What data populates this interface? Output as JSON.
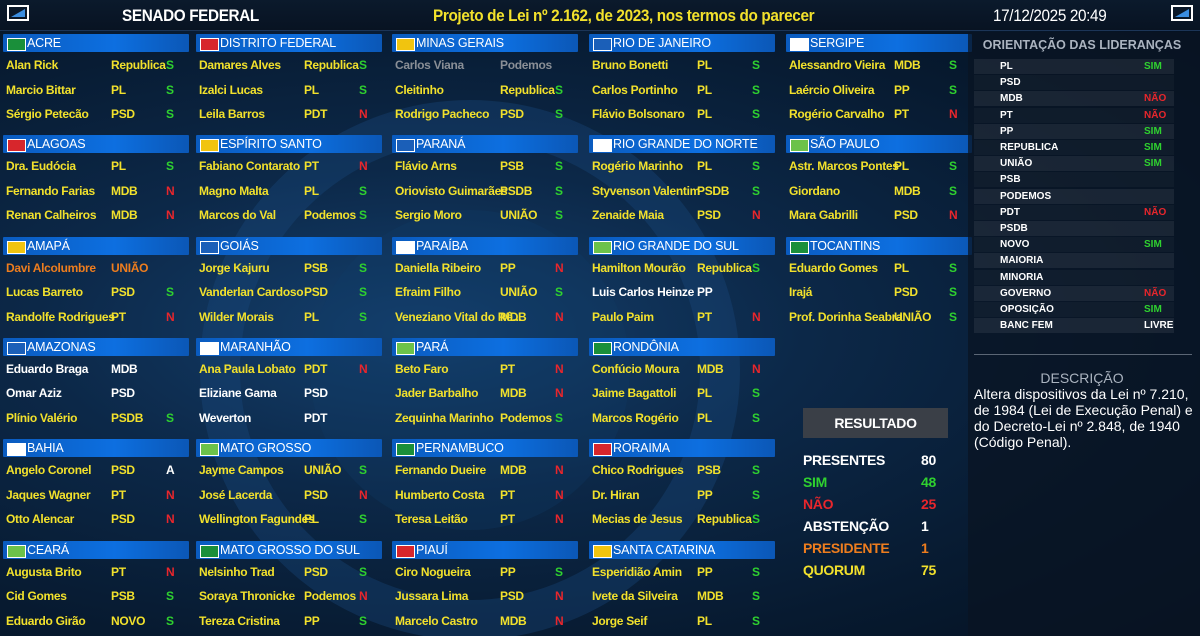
{
  "header": {
    "title": "SENADO FEDERAL",
    "subject": "Projeto de Lei nº 2.162, de 2023, nos termos do parecer",
    "datetime": "17/12/2025 20:49"
  },
  "settings": {
    "name_color": "#f2e12c",
    "name_color_no_vote": "#ffffff",
    "vote_colors": {
      "S": "#2fd12f",
      "N": "#e8262c",
      "A": "#ffffff",
      "SIM": "#2fd12f",
      "NÃO": "#e8262c",
      "LIVRE": "#ffffff"
    }
  },
  "columns": [
    [
      {
        "state": "ACRE",
        "senators": [
          {
            "name": "Alan Rick",
            "party": "Republica",
            "vote": "S"
          },
          {
            "name": "Marcio Bittar",
            "party": "PL",
            "vote": "S"
          },
          {
            "name": "Sérgio Petecão",
            "party": "PSD",
            "vote": "S"
          }
        ]
      },
      {
        "state": "ALAGOAS",
        "senators": [
          {
            "name": "Dra. Eudócia",
            "party": "PL",
            "vote": "S"
          },
          {
            "name": "Fernando Farias",
            "party": "MDB",
            "vote": "N"
          },
          {
            "name": "Renan Calheiros",
            "party": "MDB",
            "vote": "N"
          }
        ]
      },
      {
        "state": "AMAPÁ",
        "senators": [
          {
            "name": "Davi Alcolumbre",
            "party": "UNIÃO",
            "color": "#ee7d1e"
          },
          {
            "name": "Lucas Barreto",
            "party": "PSD",
            "vote": "S"
          },
          {
            "name": "Randolfe Rodrigues",
            "party": "PT",
            "vote": "N"
          }
        ]
      },
      {
        "state": "AMAZONAS",
        "senators": [
          {
            "name": "Eduardo Braga",
            "party": "MDB"
          },
          {
            "name": "Omar Aziz",
            "party": "PSD"
          },
          {
            "name": "Plínio Valério",
            "party": "PSDB",
            "vote": "S"
          }
        ]
      },
      {
        "state": "BAHIA",
        "senators": [
          {
            "name": "Angelo Coronel",
            "party": "PSD",
            "vote": "A"
          },
          {
            "name": "Jaques Wagner",
            "party": "PT",
            "vote": "N"
          },
          {
            "name": "Otto Alencar",
            "party": "PSD",
            "vote": "N"
          }
        ]
      },
      {
        "state": "CEARÁ",
        "senators": [
          {
            "name": "Augusta Brito",
            "party": "PT",
            "vote": "N"
          },
          {
            "name": "Cid Gomes",
            "party": "PSB",
            "vote": "S"
          },
          {
            "name": "Eduardo Girão",
            "party": "NOVO",
            "vote": "S"
          }
        ]
      }
    ],
    [
      {
        "state": "DISTRITO FEDERAL",
        "senators": [
          {
            "name": "Damares Alves",
            "party": "Republica",
            "vote": "S"
          },
          {
            "name": "Izalci Lucas",
            "party": "PL",
            "vote": "S"
          },
          {
            "name": "Leila Barros",
            "party": "PDT",
            "vote": "N"
          }
        ]
      },
      {
        "state": "ESPÍRITO SANTO",
        "senators": [
          {
            "name": "Fabiano Contarato",
            "party": "PT",
            "vote": "N"
          },
          {
            "name": "Magno Malta",
            "party": "PL",
            "vote": "S"
          },
          {
            "name": "Marcos do Val",
            "party": "Podemos",
            "vote": "S"
          }
        ]
      },
      {
        "state": "GOIÁS",
        "senators": [
          {
            "name": "Jorge Kajuru",
            "party": "PSB",
            "vote": "S"
          },
          {
            "name": "Vanderlan Cardoso",
            "party": "PSD",
            "vote": "S"
          },
          {
            "name": "Wilder Morais",
            "party": "PL",
            "vote": "S"
          }
        ]
      },
      {
        "state": "MARANHÃO",
        "senators": [
          {
            "name": "Ana Paula Lobato",
            "party": "PDT",
            "vote": "N"
          },
          {
            "name": "Eliziane Gama",
            "party": "PSD"
          },
          {
            "name": "Weverton",
            "party": "PDT"
          }
        ]
      },
      {
        "state": "MATO GROSSO",
        "senators": [
          {
            "name": "Jayme Campos",
            "party": "UNIÃO",
            "vote": "S"
          },
          {
            "name": "José Lacerda",
            "party": "PSD",
            "vote": "N"
          },
          {
            "name": "Wellington Fagundes",
            "party": "PL",
            "vote": "S"
          }
        ]
      },
      {
        "state": "MATO GROSSO DO SUL",
        "senators": [
          {
            "name": "Nelsinho Trad",
            "party": "PSD",
            "vote": "S"
          },
          {
            "name": "Soraya Thronicke",
            "party": "Podemos",
            "vote": "N"
          },
          {
            "name": "Tereza Cristina",
            "party": "PP",
            "vote": "S"
          }
        ]
      }
    ],
    [
      {
        "state": "MINAS GERAIS",
        "senators": [
          {
            "name": "Carlos Viana",
            "party": "Podemos",
            "color": "#8a8f96"
          },
          {
            "name": "Cleitinho",
            "party": "Republica",
            "vote": "S"
          },
          {
            "name": "Rodrigo Pacheco",
            "party": "PSD",
            "vote": "S"
          }
        ]
      },
      {
        "state": "PARANÁ",
        "senators": [
          {
            "name": "Flávio Arns",
            "party": "PSB",
            "vote": "S"
          },
          {
            "name": "Oriovisto Guimarães",
            "party": "PSDB",
            "vote": "S"
          },
          {
            "name": "Sergio Moro",
            "party": "UNIÃO",
            "vote": "S"
          }
        ]
      },
      {
        "state": "PARAÍBA",
        "senators": [
          {
            "name": "Daniella Ribeiro",
            "party": "PP",
            "vote": "N"
          },
          {
            "name": "Efraim Filho",
            "party": "UNIÃO",
            "vote": "S"
          },
          {
            "name": "Veneziano Vital do Rê...",
            "party": "MDB",
            "vote": "N"
          }
        ]
      },
      {
        "state": "PARÁ",
        "senators": [
          {
            "name": "Beto Faro",
            "party": "PT",
            "vote": "N"
          },
          {
            "name": "Jader Barbalho",
            "party": "MDB",
            "vote": "N"
          },
          {
            "name": "Zequinha Marinho",
            "party": "Podemos",
            "vote": "S"
          }
        ]
      },
      {
        "state": "PERNAMBUCO",
        "senators": [
          {
            "name": "Fernando Dueire",
            "party": "MDB",
            "vote": "N"
          },
          {
            "name": "Humberto Costa",
            "party": "PT",
            "vote": "N"
          },
          {
            "name": "Teresa Leitão",
            "party": "PT",
            "vote": "N"
          }
        ]
      },
      {
        "state": "PIAUÍ",
        "senators": [
          {
            "name": "Ciro Nogueira",
            "party": "PP",
            "vote": "S"
          },
          {
            "name": "Jussara Lima",
            "party": "PSD",
            "vote": "N"
          },
          {
            "name": "Marcelo Castro",
            "party": "MDB",
            "vote": "N"
          }
        ]
      }
    ],
    [
      {
        "state": "RIO DE JANEIRO",
        "senators": [
          {
            "name": "Bruno Bonetti",
            "party": "PL",
            "vote": "S"
          },
          {
            "name": "Carlos Portinho",
            "party": "PL",
            "vote": "S"
          },
          {
            "name": "Flávio Bolsonaro",
            "party": "PL",
            "vote": "S"
          }
        ]
      },
      {
        "state": "RIO GRANDE DO NORTE",
        "senators": [
          {
            "name": "Rogério Marinho",
            "party": "PL",
            "vote": "S"
          },
          {
            "name": "Styvenson Valentim",
            "party": "PSDB",
            "vote": "S"
          },
          {
            "name": "Zenaide Maia",
            "party": "PSD",
            "vote": "N"
          }
        ]
      },
      {
        "state": "RIO GRANDE DO SUL",
        "senators": [
          {
            "name": "Hamilton Mourão",
            "party": "Republica",
            "vote": "S"
          },
          {
            "name": "Luis Carlos Heinze",
            "party": "PP"
          },
          {
            "name": "Paulo Paim",
            "party": "PT",
            "vote": "N"
          }
        ]
      },
      {
        "state": "RONDÔNIA",
        "senators": [
          {
            "name": "Confúcio Moura",
            "party": "MDB",
            "vote": "N"
          },
          {
            "name": "Jaime Bagattoli",
            "party": "PL",
            "vote": "S"
          },
          {
            "name": "Marcos Rogério",
            "party": "PL",
            "vote": "S"
          }
        ]
      },
      {
        "state": "RORAIMA",
        "senators": [
          {
            "name": "Chico Rodrigues",
            "party": "PSB",
            "vote": "S"
          },
          {
            "name": "Dr. Hiran",
            "party": "PP",
            "vote": "S"
          },
          {
            "name": "Mecias de Jesus",
            "party": "Republica",
            "vote": "S"
          }
        ]
      },
      {
        "state": "SANTA CATARINA",
        "senators": [
          {
            "name": "Esperidião Amin",
            "party": "PP",
            "vote": "S"
          },
          {
            "name": "Ivete da Silveira",
            "party": "MDB",
            "vote": "S"
          },
          {
            "name": "Jorge Seif",
            "party": "PL",
            "vote": "S"
          }
        ]
      }
    ],
    [
      {
        "state": "SERGIPE",
        "senators": [
          {
            "name": "Alessandro Vieira",
            "party": "MDB",
            "vote": "S"
          },
          {
            "name": "Laércio Oliveira",
            "party": "PP",
            "vote": "S"
          },
          {
            "name": "Rogério Carvalho",
            "party": "PT",
            "vote": "N"
          }
        ]
      },
      {
        "state": "SÃO PAULO",
        "senators": [
          {
            "name": "Astr. Marcos Pontes",
            "party": "PL",
            "vote": "S"
          },
          {
            "name": "Giordano",
            "party": "MDB",
            "vote": "S"
          },
          {
            "name": "Mara Gabrilli",
            "party": "PSD",
            "vote": "N"
          }
        ]
      },
      {
        "state": "TOCANTINS",
        "senators": [
          {
            "name": "Eduardo Gomes",
            "party": "PL",
            "vote": "S"
          },
          {
            "name": "Irajá",
            "party": "PSD",
            "vote": "S"
          },
          {
            "name": "Prof. Dorinha Seabra",
            "party": "UNIÃO",
            "vote": "S"
          }
        ]
      }
    ]
  ],
  "result": {
    "title": "RESULTADO",
    "rows": [
      {
        "label": "PRESENTES",
        "value": 80,
        "color": "#ffffff"
      },
      {
        "label": "SIM",
        "value": 48,
        "color": "#2fd12f"
      },
      {
        "label": "NÃO",
        "value": 25,
        "color": "#e8262c"
      },
      {
        "label": "ABSTENÇÃO",
        "value": 1,
        "color": "#ffffff"
      },
      {
        "label": "PRESIDENTE",
        "value": 1,
        "color": "#ee7d1e"
      },
      {
        "label": "QUORUM",
        "value": 75,
        "color": "#f2e12c"
      }
    ]
  },
  "orientation": {
    "title": "ORIENTAÇÃO DAS LIDERANÇAS",
    "rows": [
      {
        "party": "PL",
        "vote": "SIM"
      },
      {
        "party": "PSD"
      },
      {
        "party": "MDB",
        "vote": "NÃO"
      },
      {
        "party": "PT",
        "vote": "NÃO"
      },
      {
        "party": "PP",
        "vote": "SIM"
      },
      {
        "party": "REPUBLICA",
        "vote": "SIM"
      },
      {
        "party": "UNIÃO",
        "vote": "SIM"
      },
      {
        "party": "PSB"
      },
      {
        "party": "PODEMOS"
      },
      {
        "party": "PDT",
        "vote": "NÃO"
      },
      {
        "party": "PSDB"
      },
      {
        "party": "NOVO",
        "vote": "SIM"
      },
      {
        "party": "MAIORIA"
      },
      {
        "party": "MINORIA"
      },
      {
        "party": "GOVERNO",
        "vote": "NÃO"
      },
      {
        "party": "OPOSIÇÃO",
        "vote": "SIM"
      },
      {
        "party": "BANC FEM",
        "vote": "LIVRE"
      }
    ]
  },
  "description": {
    "title": "DESCRIÇÃO",
    "text": "Altera dispositivos da Lei nº 7.210, de 1984 (Lei de Execução Penal) e do Decreto-Lei nº 2.848, de 1940 (Código Penal)."
  }
}
